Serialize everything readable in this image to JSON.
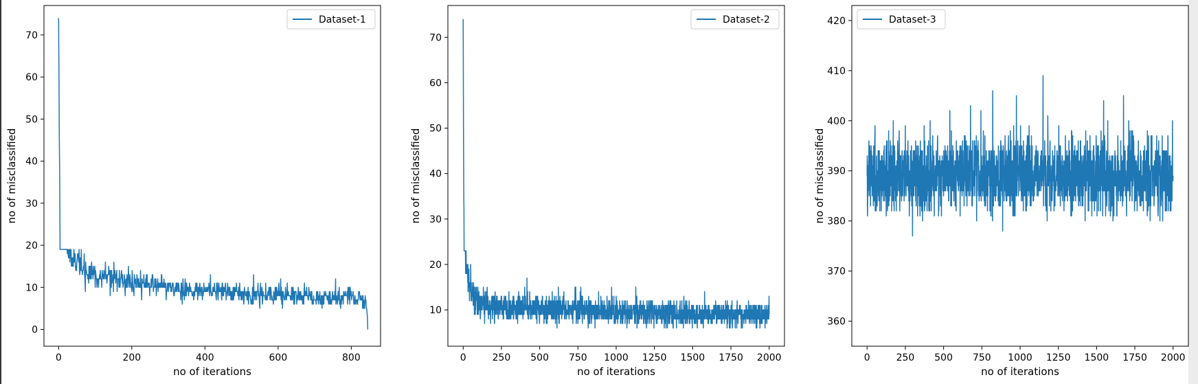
{
  "chart_data": [
    {
      "type": "line",
      "xlabel": "no of iterations",
      "ylabel": "no of misclassified",
      "xlim": [
        -40,
        880
      ],
      "ylim": [
        -4,
        77
      ],
      "xticks": [
        0,
        200,
        400,
        600,
        800
      ],
      "yticks": [
        0,
        10,
        20,
        30,
        40,
        50,
        60,
        70
      ],
      "legend_position": "upper-right",
      "line_color": "#1f77b4",
      "series": [
        {
          "name": "Dataset-1",
          "x_range": [
            0,
            845
          ],
          "anchor_points": [
            [
              0,
              74
            ],
            [
              1,
              60
            ],
            [
              2,
              45
            ],
            [
              3,
              37
            ],
            [
              5,
              30
            ],
            [
              8,
              27
            ],
            [
              12,
              24
            ],
            [
              20,
              20
            ],
            [
              35,
              17
            ],
            [
              60,
              15
            ],
            [
              100,
              13
            ],
            [
              150,
              12
            ],
            [
              200,
              11
            ],
            [
              300,
              10
            ],
            [
              400,
              9
            ],
            [
              500,
              8.5
            ],
            [
              600,
              8
            ],
            [
              700,
              7.8
            ],
            [
              800,
              7.5
            ],
            [
              840,
              7
            ],
            [
              844,
              3
            ],
            [
              845,
              0
            ]
          ],
          "noise_amplitude": [
            [
              0,
              0
            ],
            [
              10,
              3
            ],
            [
              40,
              4
            ],
            [
              100,
              3.5
            ],
            [
              300,
              3
            ],
            [
              845,
              2.5
            ]
          ],
          "y_min": 1,
          "y_max": 19
        }
      ]
    },
    {
      "type": "line",
      "xlabel": "no of iterations",
      "ylabel": "no of misclassified",
      "xlim": [
        -100,
        2100
      ],
      "ylim": [
        2,
        77
      ],
      "xticks": [
        0,
        250,
        500,
        750,
        1000,
        1250,
        1500,
        1750,
        2000
      ],
      "yticks": [
        10,
        20,
        30,
        40,
        50,
        60,
        70
      ],
      "legend_position": "upper-right",
      "line_color": "#1f77b4",
      "series": [
        {
          "name": "Dataset-2",
          "x_range": [
            0,
            2000
          ],
          "anchor_points": [
            [
              0,
              74
            ],
            [
              2,
              50
            ],
            [
              4,
              35
            ],
            [
              6,
              30
            ],
            [
              10,
              25
            ],
            [
              20,
              20
            ],
            [
              40,
              15
            ],
            [
              80,
              12
            ],
            [
              150,
              11
            ],
            [
              300,
              10.5
            ],
            [
              600,
              10
            ],
            [
              1000,
              9.5
            ],
            [
              1500,
              9
            ],
            [
              2000,
              9
            ]
          ],
          "noise_amplitude": [
            [
              0,
              0
            ],
            [
              15,
              4
            ],
            [
              60,
              4
            ],
            [
              200,
              3.5
            ],
            [
              2000,
              3
            ]
          ],
          "y_min": 4,
          "y_max": 23
        }
      ]
    },
    {
      "type": "line",
      "xlabel": "no of iterations",
      "ylabel": "no of misclassified",
      "xlim": [
        -100,
        2100
      ],
      "ylim": [
        355,
        423
      ],
      "xticks": [
        0,
        250,
        500,
        750,
        1000,
        1250,
        1500,
        1750,
        2000
      ],
      "yticks": [
        360,
        370,
        380,
        390,
        400,
        410,
        420
      ],
      "legend_position": "upper-left",
      "line_color": "#1f77b4",
      "series": [
        {
          "name": "Dataset-3",
          "x_range": [
            0,
            2000
          ],
          "anchor_points": [
            [
              0,
              389
            ],
            [
              2000,
              389
            ]
          ],
          "noise_amplitude": [
            [
              0,
              9
            ],
            [
              2000,
              9
            ]
          ],
          "y_min": 357,
          "y_max": 420
        }
      ]
    }
  ]
}
